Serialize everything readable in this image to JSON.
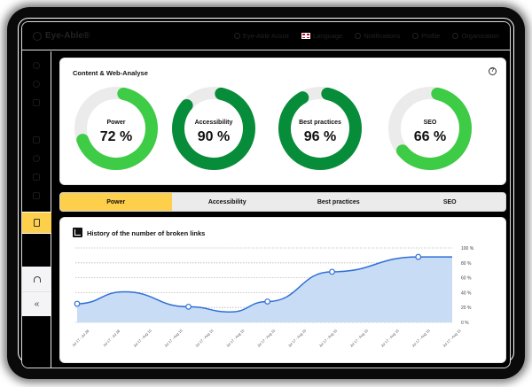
{
  "header": {
    "logo": "Eye-Able®",
    "nav": [
      {
        "icon": "help-circle-icon",
        "label": "Eye-Able Assist"
      },
      {
        "icon": "flag-uk-icon",
        "label": "Language"
      },
      {
        "icon": "shield-icon",
        "label": "Notifications"
      },
      {
        "icon": "user-icon",
        "label": "Profile"
      },
      {
        "icon": "organization-icon",
        "label": "Organization"
      }
    ]
  },
  "sidebar": {
    "items": [
      {
        "icon": "dashboard-icon"
      },
      {
        "icon": "pie-chart-icon"
      },
      {
        "icon": "tools-icon"
      },
      {
        "icon": "report-icon"
      },
      {
        "icon": "globe-icon"
      },
      {
        "icon": "document-icon"
      },
      {
        "icon": "share-icon"
      },
      {
        "icon": "file-analysis-icon",
        "active": true
      }
    ],
    "bottom": [
      {
        "icon": "headset-icon"
      },
      {
        "icon": "collapse-icon",
        "label": "«"
      }
    ]
  },
  "analysis": {
    "title": "Content & Web-Analyse",
    "help": "?",
    "gauges": [
      {
        "label": "Power",
        "value": 72,
        "display": "72 %",
        "color": "#3ecb45"
      },
      {
        "label": "Accessibility",
        "value": 90,
        "display": "90 %",
        "color": "#078c39"
      },
      {
        "label": "Best practices",
        "value": 96,
        "display": "96 %",
        "color": "#078c39"
      },
      {
        "label": "SEO",
        "value": 66,
        "display": "66 %",
        "color": "#3ecb45"
      }
    ]
  },
  "tabs": [
    {
      "label": "Power",
      "active": true
    },
    {
      "label": "Accessibility",
      "active": false
    },
    {
      "label": "Best practices",
      "active": false
    },
    {
      "label": "SEO",
      "active": false
    }
  ],
  "chart": {
    "title": "History of the number of broken links"
  },
  "chart_data": {
    "type": "area",
    "title": "History of the number of broken links",
    "x": [
      "Jul 17 - Jul 28",
      "Jul 17 - Jul 28",
      "Jul 17 - Aug 15",
      "Jul 17 - Aug 15",
      "Jul 17 - Aug 15",
      "Jul 17 - Aug 15",
      "Jul 17 - Aug 15",
      "Jul 17 - Aug 15",
      "Jul 17 - Aug 15",
      "Jul 17 - Aug 15",
      "Jul 17 - Aug 15",
      "Jul 17 - Aug 15",
      "Jul 17 - Aug 15"
    ],
    "points": [
      {
        "x_pos": 0.0,
        "value": 25
      },
      {
        "x_pos": 0.31,
        "value": 21
      },
      {
        "x_pos": 0.53,
        "value": 28
      },
      {
        "x_pos": 0.71,
        "value": 68
      },
      {
        "x_pos": 0.95,
        "value": 88
      }
    ],
    "yticks": [
      "0 %",
      "20 %",
      "40 %",
      "60 %",
      "80 %",
      "100 %"
    ],
    "ylim": [
      0,
      100
    ],
    "grid": true,
    "line_color": "#2f6fd6",
    "fill_color": "#c8dcf5"
  }
}
